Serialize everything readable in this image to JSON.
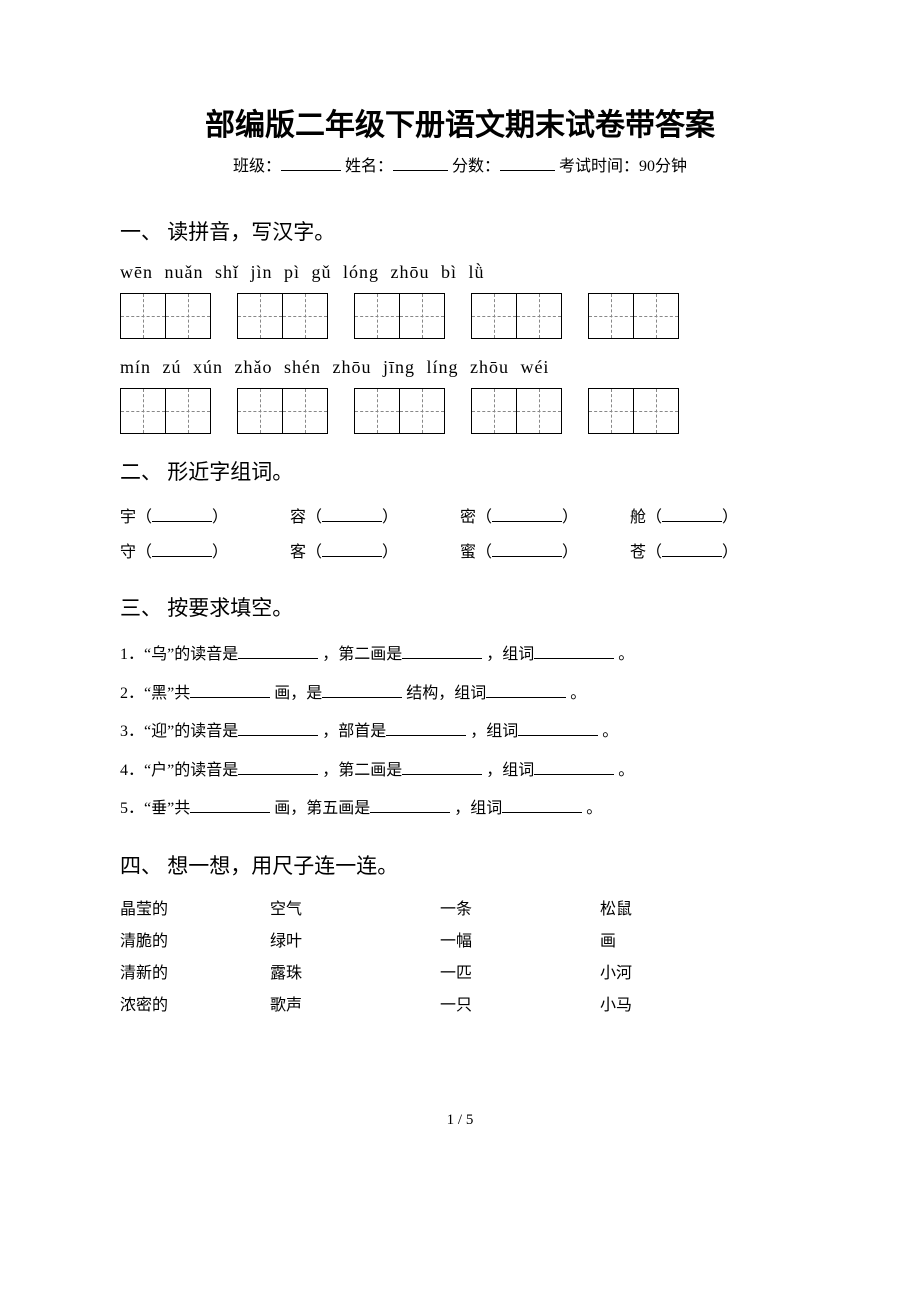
{
  "title": "部编版二年级下册语文期末试卷带答案",
  "info": {
    "class_label": "班级：",
    "name_label": "姓名：",
    "score_label": "分数：",
    "time_label": "考试时间：90分钟"
  },
  "sections": {
    "s1": {
      "heading": "一、 读拼音，写汉字。",
      "row1_pinyin": "wēn nuǎn   shǐ jìn   pì gǔ   lóng zhōu   bì lǜ",
      "row2_pinyin": "mín zú   xún zhǎo   shén zhōu   jīng líng   zhōu wéi"
    },
    "s2": {
      "heading": "二、 形近字组词。",
      "pairs": [
        [
          "宇（",
          "容（",
          "密（",
          "舱（"
        ],
        [
          "守（",
          "客（",
          "蜜（",
          "苍（"
        ]
      ],
      "close": "）"
    },
    "s3": {
      "heading": "三、 按要求填空。",
      "items": [
        {
          "pre": "1．“乌”的读音是",
          "mid1": "，第二画是",
          "mid2": "，组词",
          "end": "。"
        },
        {
          "pre": "2．“黑”共",
          "mid1": "画，是",
          "mid2": "结构，组词",
          "end": "。"
        },
        {
          "pre": "3．“迎”的读音是",
          "mid1": "，部首是",
          "mid2": "，组词",
          "end": "。"
        },
        {
          "pre": "4．“户”的读音是",
          "mid1": "，第二画是",
          "mid2": "，组词",
          "end": "。"
        },
        {
          "pre": "5．“垂”共",
          "mid1": "画，第五画是",
          "mid2": "，组词",
          "end": "。"
        }
      ]
    },
    "s4": {
      "heading": "四、 想一想，用尺子连一连。",
      "rows": [
        [
          "晶莹的",
          "空气",
          "一条",
          "松鼠"
        ],
        [
          "清脆的",
          "绿叶",
          "一幅",
          "画"
        ],
        [
          "清新的",
          "露珠",
          "一匹",
          "小河"
        ],
        [
          "浓密的",
          "歌声",
          "一只",
          "小马"
        ]
      ]
    }
  },
  "footer": "1 / 5"
}
